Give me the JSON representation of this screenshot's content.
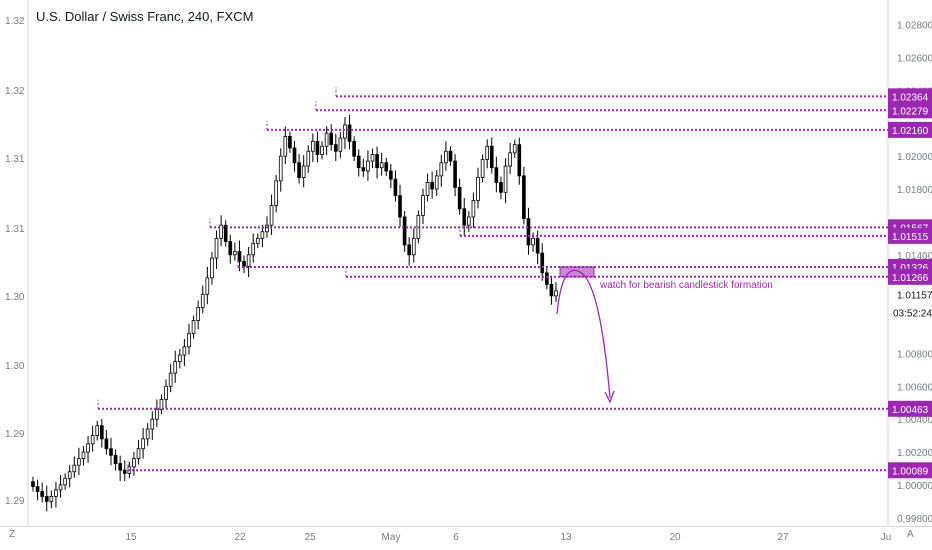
{
  "title": "U.S. Dollar / Swiss Franc, 240, FXCM",
  "colors": {
    "up": "#ffffff",
    "down": "#000000",
    "wick": "#000000",
    "level": "#9c27b0",
    "label_bg": "#9c27b0",
    "label_text": "#ffffff",
    "axis_text": "#787b86",
    "grid": "#f0f3fa"
  },
  "icons": {
    "left_corner": "Z",
    "right_corner": "A",
    "gear": "gear-icon"
  },
  "chart_data": {
    "type": "candlestick",
    "annotation": "watch for bearish candlestick formation",
    "countdown": "03:52:24",
    "last_price": "1.01157",
    "right_axis": {
      "ticks": [
        "1.02800",
        "1.02600",
        "1.02400",
        "1.02000",
        "1.01800",
        "1.01400",
        "1.00800",
        "1.00600",
        "1.00400",
        "1.00200",
        "1.00000",
        "0.99800"
      ],
      "ylim": [
        0.9975,
        1.0295
      ]
    },
    "left_axis": {
      "ticks": [
        "1.32",
        "1.32",
        "1.31",
        "1.31",
        "1.30",
        "1.30",
        "1.29",
        "1.29"
      ]
    },
    "x_ticks": [
      "15",
      "22",
      "25",
      "May",
      "6",
      "13",
      "20",
      "27",
      "Ju"
    ],
    "levels": [
      {
        "label": "1.02364",
        "value": 1.02364
      },
      {
        "label": "1.02279",
        "value": 1.02279
      },
      {
        "label": "1.02160",
        "value": 1.0216
      },
      {
        "label": "1.01567",
        "value": 1.01567
      },
      {
        "label": "1.01515",
        "value": 1.01515
      },
      {
        "label": "1.01326",
        "value": 1.01326
      },
      {
        "label": "1.01266",
        "value": 1.01266
      },
      {
        "label": "1.00463",
        "value": 1.00463
      },
      {
        "label": "1.00089",
        "value": 1.00089
      }
    ],
    "zone": {
      "from": 1.01266,
      "to": 1.01326
    },
    "closes": [
      0.9999,
      0.9996,
      0.9993,
      0.999,
      0.9993,
      0.9997,
      1.0,
      1.0004,
      1.0008,
      1.0012,
      1.0016,
      1.002,
      1.0025,
      1.003,
      1.0036,
      1.0028,
      1.0022,
      1.0018,
      1.0013,
      1.0009,
      1.0007,
      1.0011,
      1.0016,
      1.0022,
      1.0028,
      1.0034,
      1.004,
      1.0046,
      1.0052,
      1.006,
      1.0068,
      1.0075,
      1.0079,
      1.0084,
      1.0092,
      1.01,
      1.0108,
      1.0116,
      1.0126,
      1.0138,
      1.015,
      1.0158,
      1.0148,
      1.014,
      1.0142,
      1.0136,
      1.0133,
      1.014,
      1.0147,
      1.015,
      1.0154,
      1.0158,
      1.017,
      1.0185,
      1.02,
      1.0212,
      1.0205,
      1.0196,
      1.0187,
      1.0194,
      1.0203,
      1.0209,
      1.0201,
      1.0206,
      1.0214,
      1.0207,
      1.0203,
      1.0211,
      1.0219,
      1.0209,
      1.02,
      1.0193,
      1.0191,
      1.0197,
      1.0201,
      1.0193,
      1.0196,
      1.0191,
      1.0186,
      1.0176,
      1.0163,
      1.0146,
      1.014,
      1.015,
      1.0164,
      1.0176,
      1.0184,
      1.018,
      1.0188,
      1.0196,
      1.0203,
      1.0197,
      1.0181,
      1.0168,
      1.0158,
      1.0163,
      1.0173,
      1.0187,
      1.0198,
      1.0206,
      1.0193,
      1.0184,
      1.0178,
      1.0194,
      1.0202,
      1.0207,
      1.0188,
      1.0162,
      1.0146,
      1.015,
      1.0141,
      1.0129,
      1.0122,
      1.0115,
      1.0118
    ]
  }
}
